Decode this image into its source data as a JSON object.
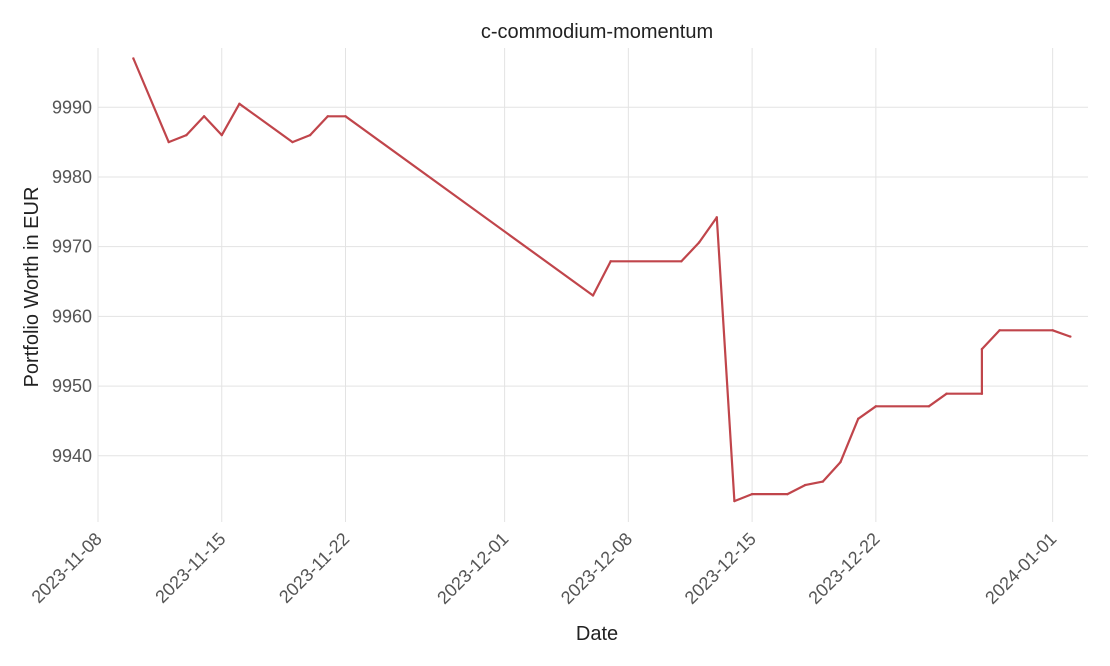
{
  "chart_data": {
    "type": "line",
    "title": "c-commodium-momentum",
    "xlabel": "Date",
    "ylabel": "Portfolio Worth in EUR",
    "grid": true,
    "legend": "none",
    "x_axis_type": "date",
    "xlim": [
      "2023-11-08",
      "2024-01-03"
    ],
    "ylim": [
      9930.5,
      9998.5
    ],
    "x_ticks": [
      "2023-11-08",
      "2023-11-15",
      "2023-11-22",
      "2023-12-01",
      "2023-12-08",
      "2023-12-15",
      "2023-12-22",
      "2024-01-01"
    ],
    "y_ticks": [
      9940,
      9950,
      9960,
      9970,
      9980,
      9990
    ],
    "series": [
      {
        "name": "",
        "color": "#c0454b",
        "points": [
          {
            "x": "2023-11-10",
            "y": 9997.0
          },
          {
            "x": "2023-11-12",
            "y": 9985.0
          },
          {
            "x": "2023-11-13",
            "y": 9986.0
          },
          {
            "x": "2023-11-14",
            "y": 9988.7
          },
          {
            "x": "2023-11-15",
            "y": 9986.0
          },
          {
            "x": "2023-11-16",
            "y": 9990.5
          },
          {
            "x": "2023-11-19",
            "y": 9985.0
          },
          {
            "x": "2023-11-20",
            "y": 9986.0
          },
          {
            "x": "2023-11-21",
            "y": 9988.7
          },
          {
            "x": "2023-11-22",
            "y": 9988.7
          },
          {
            "x": "2023-12-06",
            "y": 9963.0
          },
          {
            "x": "2023-12-07",
            "y": 9967.9
          },
          {
            "x": "2023-12-11",
            "y": 9967.9
          },
          {
            "x": "2023-12-12",
            "y": 9970.6
          },
          {
            "x": "2023-12-13",
            "y": 9974.2
          },
          {
            "x": "2023-12-14",
            "y": 9933.5
          },
          {
            "x": "2023-12-15",
            "y": 9934.5
          },
          {
            "x": "2023-12-17",
            "y": 9934.5
          },
          {
            "x": "2023-12-18",
            "y": 9935.8
          },
          {
            "x": "2023-12-19",
            "y": 9936.3
          },
          {
            "x": "2023-12-20",
            "y": 9939.1
          },
          {
            "x": "2023-12-21",
            "y": 9945.3
          },
          {
            "x": "2023-12-22",
            "y": 9947.1
          },
          {
            "x": "2023-12-25",
            "y": 9947.1
          },
          {
            "x": "2023-12-26",
            "y": 9948.9
          },
          {
            "x": "2023-12-28",
            "y": 9948.9
          },
          {
            "x": "2023-12-28",
            "y": 9955.3
          },
          {
            "x": "2023-12-29",
            "y": 9958.0
          },
          {
            "x": "2024-01-01",
            "y": 9958.0
          },
          {
            "x": "2024-01-02",
            "y": 9957.1
          }
        ]
      }
    ]
  }
}
